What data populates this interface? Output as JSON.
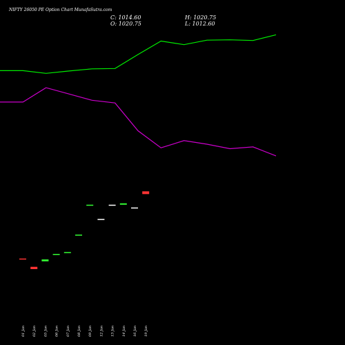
{
  "title": "NIFTY 26050  PE Option  Chart MunafaSutra.com",
  "ohlc": {
    "close": "C: 1014.60",
    "high": "H: 1020.75",
    "open": "O: 1020.75",
    "low": "L: 1012.60"
  },
  "colors": {
    "background": "#000000",
    "up": "#33ff33",
    "down": "#ff3333",
    "neutral": "#ffffff",
    "line_green": "#00ee00",
    "line_magenta": "#cc00cc"
  },
  "chart_data": {
    "type": "candlestick",
    "categories": [
      "01 Jan",
      "02 Jan",
      "05 Jan",
      "06 Jan",
      "07 Jan",
      "08 Jan",
      "09 Jan",
      "12 Jan",
      "13 Jan",
      "14 Jan",
      "16 Jan",
      "19 Jan"
    ],
    "candles": [
      {
        "o": 583,
        "c": 581,
        "dir": "down"
      },
      {
        "o": 565,
        "c": 560,
        "dir": "down"
      },
      {
        "o": 577,
        "c": 581,
        "dir": "up"
      },
      {
        "o": 592,
        "c": 593,
        "dir": "up"
      },
      {
        "o": 596,
        "c": 597,
        "dir": "up"
      },
      {
        "o": 633,
        "c": 635,
        "dir": "up"
      },
      {
        "o": 698,
        "c": 700,
        "dir": "up"
      },
      {
        "o": 669,
        "c": 669,
        "dir": "flat"
      },
      {
        "o": 700,
        "c": 700,
        "dir": "flat"
      },
      {
        "o": 700,
        "c": 703,
        "dir": "up"
      },
      {
        "o": 694,
        "c": 694,
        "dir": "flat"
      },
      {
        "o": 729,
        "c": 723,
        "dir": "down"
      }
    ],
    "line_series": [
      {
        "color": "green",
        "values": [
          0.76,
          0.76,
          0.745,
          0.758,
          0.77,
          0.772,
          0.85,
          0.925,
          0.905,
          0.93,
          0.932,
          0.928,
          0.96
        ]
      },
      {
        "color": "magenta",
        "values": [
          0.585,
          0.585,
          0.665,
          0.63,
          0.595,
          0.58,
          0.425,
          0.33,
          0.37,
          0.35,
          0.325,
          0.335,
          0.285
        ]
      }
    ],
    "ylim": [
      500,
      800
    ]
  }
}
